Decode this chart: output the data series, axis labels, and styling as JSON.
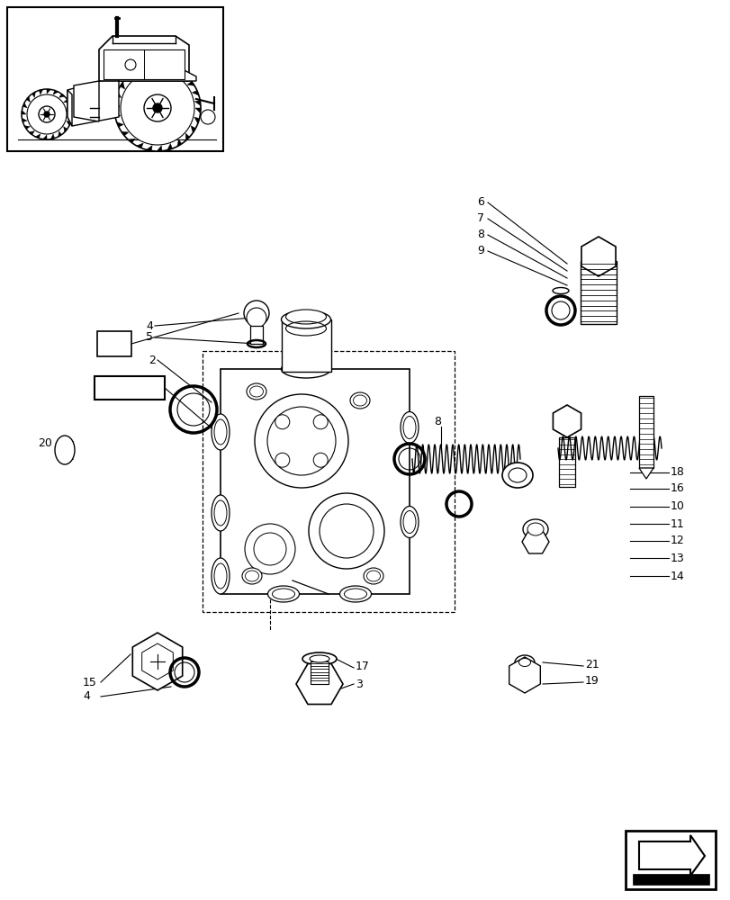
{
  "bg_color": "#ffffff",
  "line_color": "#000000",
  "fig_width": 8.12,
  "fig_height": 10.0,
  "dpi": 100
}
